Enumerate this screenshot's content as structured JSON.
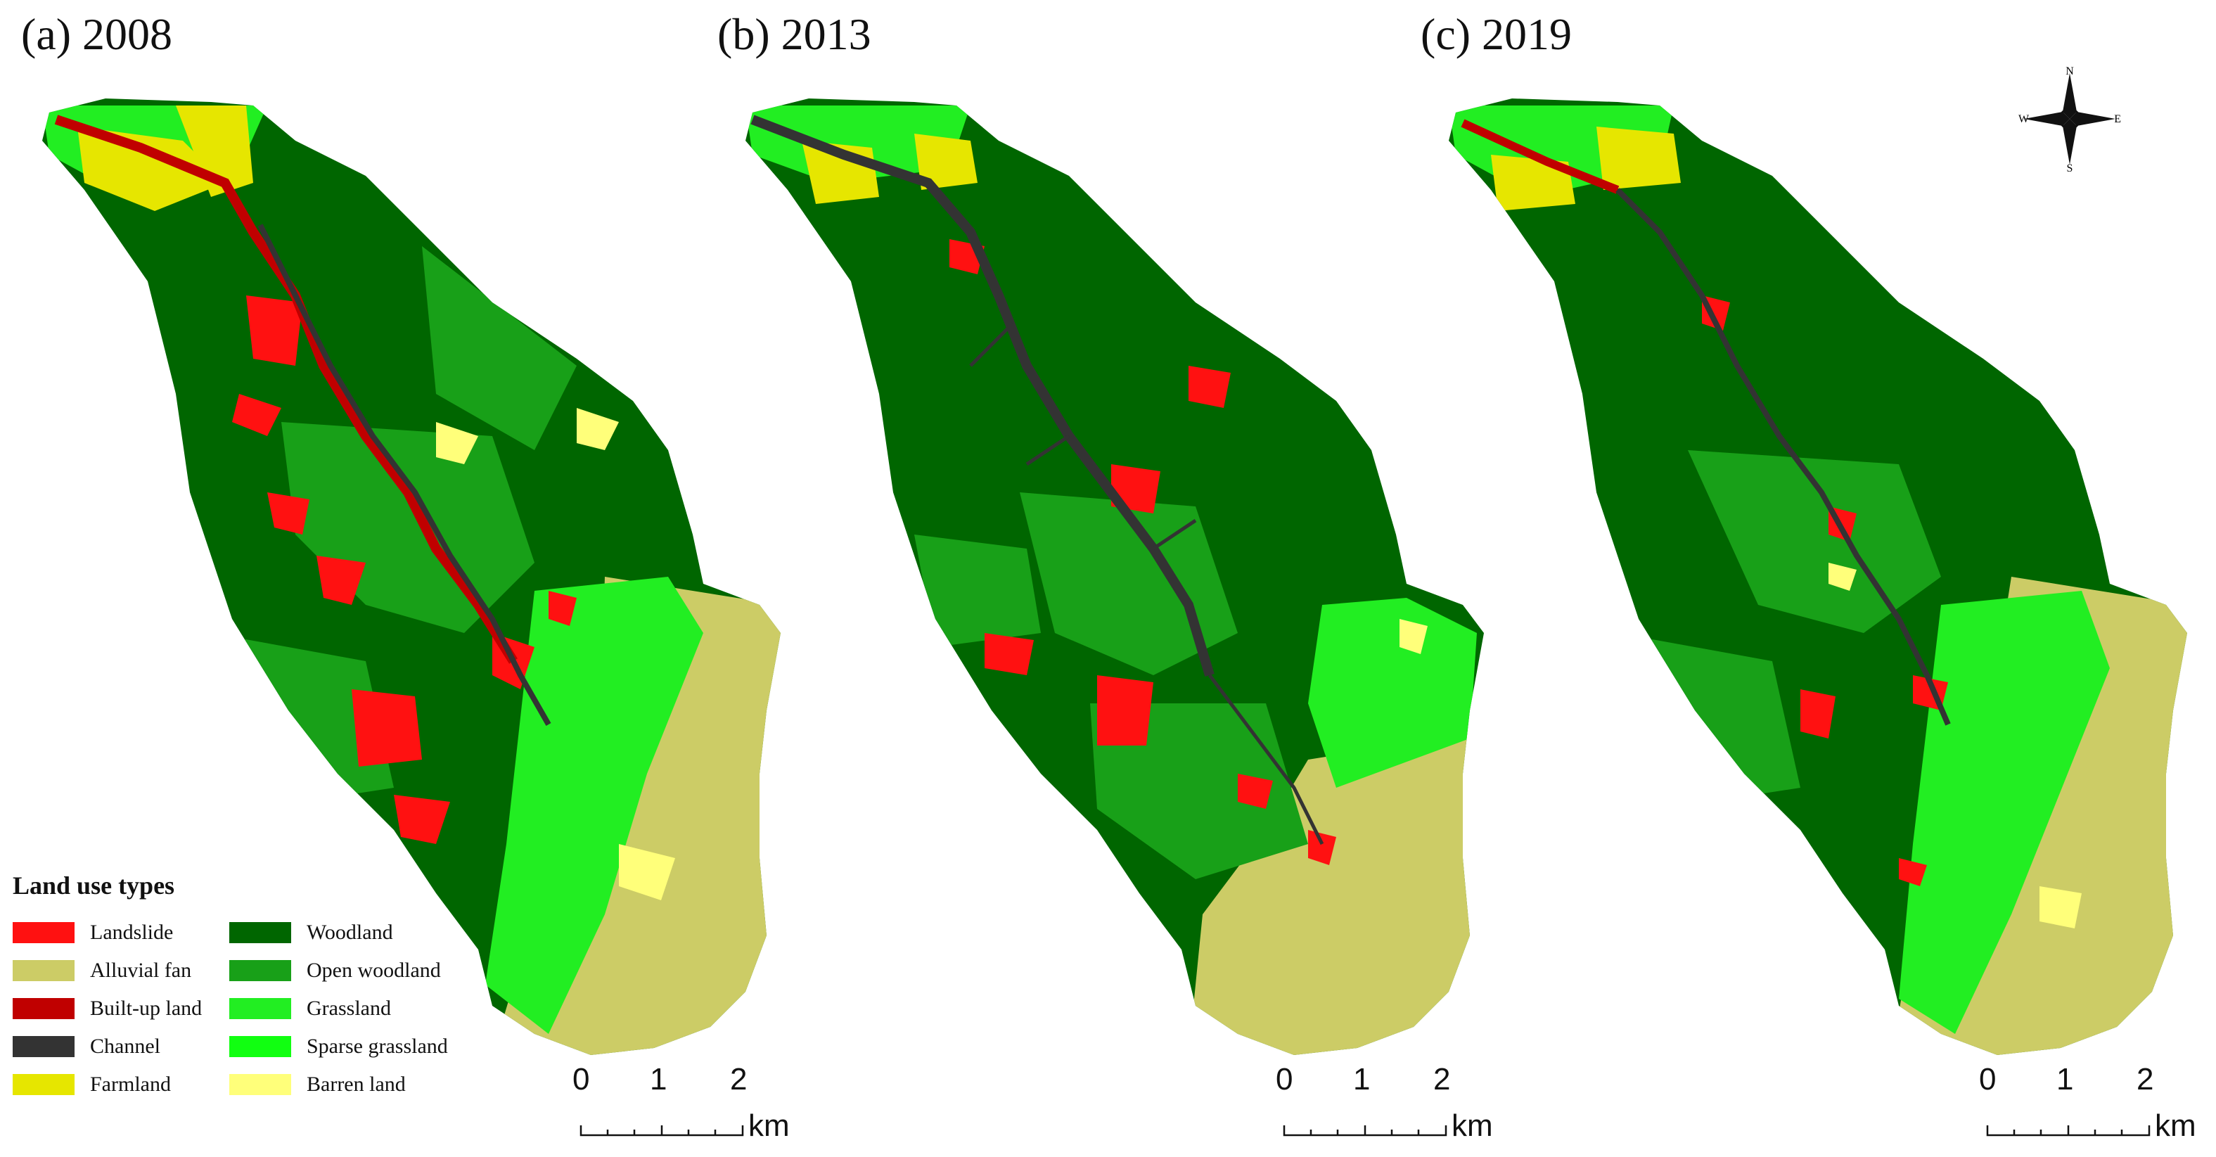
{
  "panels": [
    {
      "title": "(a) 2008"
    },
    {
      "title": "(b) 2013"
    },
    {
      "title": "(c) 2019"
    }
  ],
  "legend": {
    "title": "Land use types",
    "items": [
      {
        "label": "Landslide",
        "color": "#ff1111"
      },
      {
        "label": "Alluvial fan",
        "color": "#cccc66"
      },
      {
        "label": "Built-up land",
        "color": "#c00000"
      },
      {
        "label": "Channel",
        "color": "#333333"
      },
      {
        "label": "Farmland",
        "color": "#e6e600"
      },
      {
        "label": "Woodland",
        "color": "#006600"
      },
      {
        "label": "Open woodland",
        "color": "#18a018"
      },
      {
        "label": "Grassland",
        "color": "#22ee22"
      },
      {
        "label": "Sparse grassland",
        "color": "#11ff11"
      },
      {
        "label": "Barren land",
        "color": "#ffff7a"
      }
    ]
  },
  "scalebar": {
    "ticks": [
      "0",
      "1",
      "2"
    ],
    "unit": "km"
  },
  "north_arrow": {
    "n": "N",
    "s": "S",
    "e": "E",
    "w": "W"
  }
}
